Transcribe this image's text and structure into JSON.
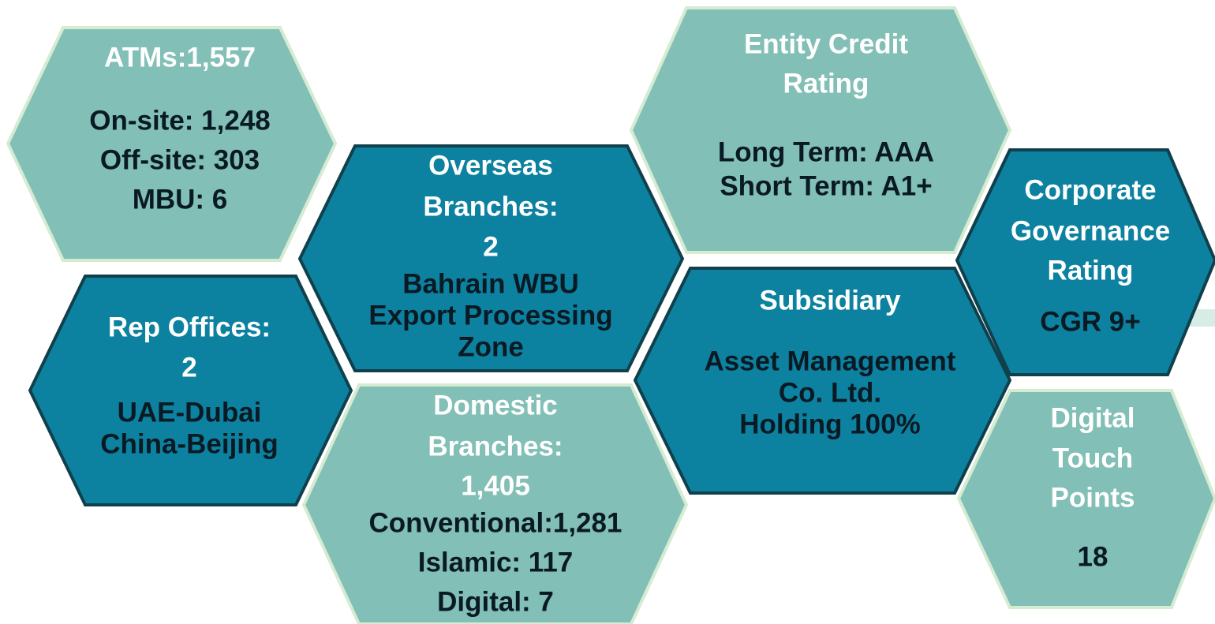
{
  "nodes": [
    {
      "title": [
        "ATMs:1,557"
      ],
      "details": [
        "On-site: 1,248",
        "Off-site: 303",
        "MBU: 6"
      ]
    },
    {
      "title": [
        "Entity Credit",
        "Rating"
      ],
      "details": [
        "Long Term: AAA",
        "Short Term: A1+"
      ]
    },
    {
      "title": [
        "Overseas",
        "Branches:",
        "2"
      ],
      "details": [
        "Bahrain WBU",
        "Export Processing",
        "Zone"
      ]
    },
    {
      "title": [
        "Rep Offices:",
        "2"
      ],
      "details": [
        "UAE-Dubai",
        "China-Beijing"
      ]
    },
    {
      "title": [
        "Domestic",
        "Branches:",
        "1,405"
      ],
      "details": [
        "Conventional:1,281",
        "Islamic: 117",
        "Digital: 7"
      ]
    },
    {
      "title": [
        "Subsidiary"
      ],
      "details": [
        "Asset Management",
        "Co. Ltd.",
        "Holding 100%"
      ]
    },
    {
      "title": [
        "Corporate",
        "Governance",
        "Rating"
      ],
      "details": [
        "CGR 9+"
      ]
    },
    {
      "title": [
        "Digital",
        "Touch",
        "Points"
      ],
      "details": [
        "18"
      ]
    }
  ]
}
